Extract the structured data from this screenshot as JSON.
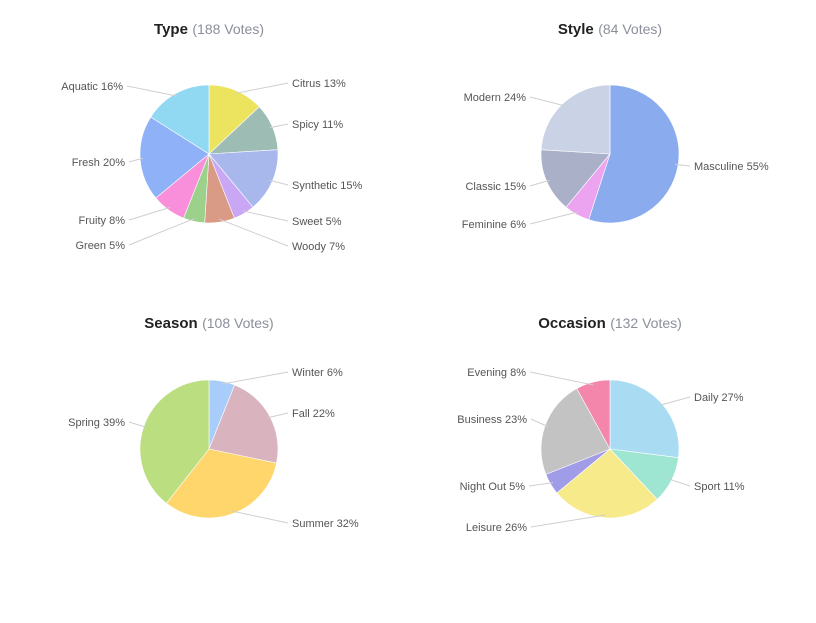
{
  "chart_data": [
    {
      "type": "pie",
      "title": "Type",
      "subtitle": "(188 Votes)",
      "slices": [
        {
          "label": "Citrus 13%",
          "value": 13,
          "color": "#ece35e"
        },
        {
          "label": "Spicy 11%",
          "value": 11,
          "color": "#9dbcb4"
        },
        {
          "label": "Synthetic 15%",
          "value": 15,
          "color": "#a8b8ed"
        },
        {
          "label": "Sweet 5%",
          "value": 5,
          "color": "#c9a7f5"
        },
        {
          "label": "Woody 7%",
          "value": 7,
          "color": "#d99a86"
        },
        {
          "label": "Green 5%",
          "value": 5,
          "color": "#9cd18b"
        },
        {
          "label": "Fruity 8%",
          "value": 8,
          "color": "#f98fda"
        },
        {
          "label": "Fresh 20%",
          "value": 20,
          "color": "#8eb1f7"
        },
        {
          "label": "Aquatic 16%",
          "value": 16,
          "color": "#91d9f2"
        }
      ]
    },
    {
      "type": "pie",
      "title": "Style",
      "subtitle": "(84 Votes)",
      "slices": [
        {
          "label": "Masculine 55%",
          "value": 55,
          "color": "#8aacef"
        },
        {
          "label": "Feminine 6%",
          "value": 6,
          "color": "#eca4f1"
        },
        {
          "label": "Classic 15%",
          "value": 15,
          "color": "#abb0c9"
        },
        {
          "label": "Modern 24%",
          "value": 24,
          "color": "#cad3e6"
        }
      ]
    },
    {
      "type": "pie",
      "title": "Season",
      "subtitle": "(108 Votes)",
      "slices": [
        {
          "label": "Winter 6%",
          "value": 6,
          "color": "#a9cdfb"
        },
        {
          "label": "Fall 22%",
          "value": 22,
          "color": "#d9b4bf"
        },
        {
          "label": "Summer 32%",
          "value": 32,
          "color": "#ffd66b"
        },
        {
          "label": "Spring 39%",
          "value": 39,
          "color": "#bade80"
        }
      ]
    },
    {
      "type": "pie",
      "title": "Occasion",
      "subtitle": "(132 Votes)",
      "slices": [
        {
          "label": "Daily 27%",
          "value": 27,
          "color": "#a9dcf3"
        },
        {
          "label": "Sport 11%",
          "value": 11,
          "color": "#9ee6d2"
        },
        {
          "label": "Leisure 26%",
          "value": 26,
          "color": "#f7ea8a"
        },
        {
          "label": "Night Out 5%",
          "value": 5,
          "color": "#a19ce8"
        },
        {
          "label": "Business 23%",
          "value": 23,
          "color": "#c3c3c3"
        },
        {
          "label": "Evening 8%",
          "value": 8,
          "color": "#f485ab"
        }
      ]
    }
  ]
}
